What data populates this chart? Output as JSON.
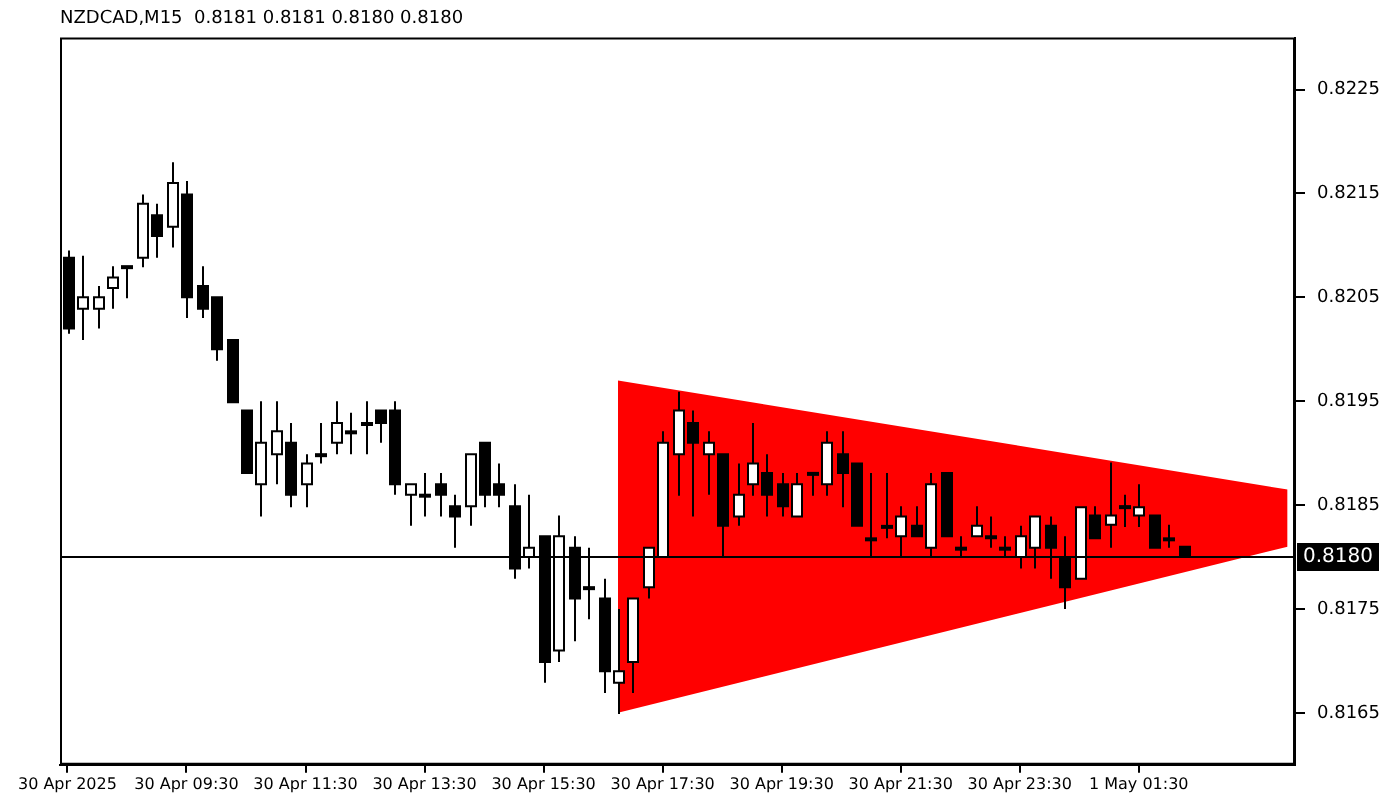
{
  "chart_data": {
    "type": "candlestick",
    "title": "NZDCAD,M15  0.8181 0.8181 0.8180 0.8180",
    "categories": [
      "30 Apr 2025",
      null,
      null,
      null,
      null,
      null,
      null,
      null,
      "30 Apr 09:30",
      null,
      null,
      null,
      null,
      null,
      null,
      null,
      "30 Apr 11:30",
      null,
      null,
      null,
      null,
      null,
      null,
      null,
      "30 Apr 13:30",
      null,
      null,
      null,
      null,
      null,
      null,
      null,
      "30 Apr 15:30",
      null,
      null,
      null,
      null,
      null,
      null,
      null,
      "30 Apr 17:30",
      null,
      null,
      null,
      null,
      null,
      null,
      null,
      "30 Apr 19:30",
      null,
      null,
      null,
      null,
      null,
      null,
      null,
      "30 Apr 21:30",
      null,
      null,
      null,
      null,
      null,
      null,
      null,
      "30 Apr 23:30",
      null,
      null,
      null,
      null,
      null,
      null,
      null,
      "1 May 01:30",
      null,
      null,
      null,
      null,
      null,
      null,
      null,
      null,
      null,
      null
    ],
    "ohlc": [
      [
        0.82088,
        0.82095,
        0.82015,
        0.8202
      ],
      [
        0.82039,
        0.8209,
        0.82009,
        0.8205
      ],
      [
        0.82039,
        0.82061,
        0.8202,
        0.8205
      ],
      [
        0.82059,
        0.8208,
        0.82039,
        0.82069
      ],
      [
        0.82079,
        0.8208,
        0.82049,
        0.8208
      ],
      [
        0.82088,
        0.82149,
        0.82079,
        0.8214
      ],
      [
        0.82129,
        0.8214,
        0.82088,
        0.82109
      ],
      [
        0.82118,
        0.8218,
        0.82098,
        0.8216
      ],
      [
        0.82149,
        0.82162,
        0.8203,
        0.8205
      ],
      [
        0.82061,
        0.8208,
        0.8203,
        0.82039
      ],
      [
        0.8205,
        0.8205,
        0.81989,
        0.82
      ],
      [
        0.82009,
        0.82009,
        0.81949,
        0.81949
      ],
      [
        0.81941,
        0.81941,
        0.81881,
        0.81881
      ],
      [
        0.8187,
        0.8195,
        0.81839,
        0.8191
      ],
      [
        0.81899,
        0.8195,
        0.8187,
        0.81921
      ],
      [
        0.8191,
        0.81929,
        0.81848,
        0.8186
      ],
      [
        0.8187,
        0.81899,
        0.81848,
        0.8189
      ],
      [
        0.81899,
        0.81929,
        0.8189,
        0.81899
      ],
      [
        0.8191,
        0.8195,
        0.81899,
        0.81929
      ],
      [
        0.81921,
        0.81939,
        0.81899,
        0.81921
      ],
      [
        0.81929,
        0.8195,
        0.81899,
        0.81929
      ],
      [
        0.81941,
        0.81941,
        0.8191,
        0.81929
      ],
      [
        0.81941,
        0.8195,
        0.8186,
        0.8187
      ],
      [
        0.8186,
        0.8187,
        0.8183,
        0.8187
      ],
      [
        0.8186,
        0.81881,
        0.81839,
        0.8186
      ],
      [
        0.8187,
        0.81881,
        0.81839,
        0.8186
      ],
      [
        0.81849,
        0.8186,
        0.81809,
        0.81839
      ],
      [
        0.81849,
        0.81899,
        0.8183,
        0.81899
      ],
      [
        0.8191,
        0.8191,
        0.81848,
        0.8186
      ],
      [
        0.8187,
        0.8189,
        0.81848,
        0.8186
      ],
      [
        0.81849,
        0.8187,
        0.81779,
        0.81789
      ],
      [
        0.818,
        0.8186,
        0.81789,
        0.81809
      ],
      [
        0.8182,
        0.8182,
        0.81679,
        0.81699
      ],
      [
        0.8171,
        0.8184,
        0.81699,
        0.8182
      ],
      [
        0.81809,
        0.8182,
        0.81719,
        0.8176
      ],
      [
        0.81771,
        0.81809,
        0.8174,
        0.81771
      ],
      [
        0.8176,
        0.81779,
        0.81669,
        0.8169
      ],
      [
        0.81679,
        0.8175,
        0.81649,
        0.8169
      ],
      [
        0.81699,
        0.8176,
        0.81669,
        0.8176
      ],
      [
        0.81771,
        0.81809,
        0.8176,
        0.81809
      ],
      [
        0.818,
        0.81921,
        0.818,
        0.8191
      ],
      [
        0.81899,
        0.81959,
        0.81859,
        0.81941
      ],
      [
        0.81929,
        0.81941,
        0.81839,
        0.8191
      ],
      [
        0.81899,
        0.81921,
        0.8186,
        0.8191
      ],
      [
        0.81899,
        0.81899,
        0.818,
        0.8183
      ],
      [
        0.81839,
        0.8189,
        0.8183,
        0.8186
      ],
      [
        0.8187,
        0.81929,
        0.81859,
        0.8189
      ],
      [
        0.81881,
        0.81899,
        0.81839,
        0.8186
      ],
      [
        0.8187,
        0.81881,
        0.81839,
        0.81849
      ],
      [
        0.81839,
        0.81881,
        0.81839,
        0.8187
      ],
      [
        0.81881,
        0.81881,
        0.81859,
        0.81881
      ],
      [
        0.8187,
        0.81921,
        0.81859,
        0.8191
      ],
      [
        0.81899,
        0.81921,
        0.81848,
        0.81881
      ],
      [
        0.8189,
        0.8189,
        0.8183,
        0.8183
      ],
      [
        0.81818,
        0.81881,
        0.818,
        0.81818
      ],
      [
        0.8183,
        0.81881,
        0.81818,
        0.8183
      ],
      [
        0.8182,
        0.81849,
        0.818,
        0.81839
      ],
      [
        0.8183,
        0.81849,
        0.8182,
        0.8182
      ],
      [
        0.81809,
        0.81881,
        0.818,
        0.8187
      ],
      [
        0.81881,
        0.81881,
        0.8182,
        0.8182
      ],
      [
        0.81809,
        0.8182,
        0.818,
        0.81809
      ],
      [
        0.8182,
        0.81849,
        0.8182,
        0.8183
      ],
      [
        0.8182,
        0.81839,
        0.81809,
        0.8182
      ],
      [
        0.81809,
        0.8182,
        0.818,
        0.81809
      ],
      [
        0.818,
        0.8183,
        0.81789,
        0.8182
      ],
      [
        0.81809,
        0.81839,
        0.81789,
        0.81839
      ],
      [
        0.8183,
        0.81839,
        0.81779,
        0.81809
      ],
      [
        0.818,
        0.8182,
        0.8175,
        0.81771
      ],
      [
        0.81779,
        0.81848,
        0.81779,
        0.81848
      ],
      [
        0.8184,
        0.81849,
        0.81818,
        0.81818
      ],
      [
        0.81831,
        0.81891,
        0.81809,
        0.8184
      ],
      [
        0.81849,
        0.8186,
        0.81829,
        0.81849
      ],
      [
        0.8184,
        0.8187,
        0.81829,
        0.81848
      ],
      [
        0.8184,
        0.8184,
        0.81809,
        0.81809
      ],
      [
        0.81818,
        0.81831,
        0.81809,
        0.81818
      ],
      [
        0.8181,
        0.8181,
        0.818,
        0.818
      ],
      null,
      null,
      null,
      null,
      null,
      null,
      null
    ],
    "series": [
      {
        "type": "line",
        "color": "#ff0000",
        "values": [
          null,
          null,
          null,
          null,
          null,
          null,
          null,
          null,
          null,
          null,
          null,
          null,
          null,
          null,
          null,
          null,
          null,
          null,
          null,
          null,
          null,
          null,
          null,
          null,
          null,
          null,
          null,
          null,
          null,
          null,
          null,
          null,
          null,
          null,
          null,
          null,
          null,
          null,
          null,
          null,
          null,
          null,
          null,
          null,
          null,
          null,
          null,
          null,
          null,
          null,
          null,
          null,
          null,
          null,
          null,
          null,
          null,
          null,
          null,
          null,
          null,
          null,
          null,
          null,
          null,
          null,
          null,
          null,
          null,
          null,
          null,
          null,
          null,
          null,
          null,
          null,
          null,
          null,
          null,
          null,
          null,
          null,
          null
        ],
        "upper": [
          null,
          null,
          null,
          null,
          null,
          null,
          null,
          null,
          null,
          null,
          null,
          null,
          null,
          null,
          null,
          null,
          null,
          null,
          null,
          null,
          null,
          null,
          null,
          null,
          null,
          null,
          null,
          null,
          null,
          null,
          null,
          null,
          null,
          null,
          null,
          null,
          null,
          0.8197,
          null,
          null,
          null,
          null,
          null,
          null,
          null,
          null,
          null,
          null,
          null,
          null,
          null,
          null,
          null,
          null,
          null,
          null,
          null,
          null,
          null,
          null,
          null,
          null,
          null,
          null,
          null,
          null,
          null,
          null,
          null,
          null,
          null,
          null,
          null,
          null,
          null,
          null,
          null,
          null,
          null,
          null,
          null,
          null,
          0.81865
        ],
        "lower": [
          null,
          null,
          null,
          null,
          null,
          null,
          null,
          null,
          null,
          null,
          null,
          null,
          null,
          null,
          null,
          null,
          null,
          null,
          null,
          null,
          null,
          null,
          null,
          null,
          null,
          null,
          null,
          null,
          null,
          null,
          null,
          null,
          null,
          null,
          null,
          null,
          null,
          0.8165,
          null,
          null,
          null,
          null,
          null,
          null,
          null,
          null,
          null,
          null,
          null,
          null,
          null,
          null,
          null,
          null,
          null,
          null,
          null,
          null,
          null,
          null,
          null,
          null,
          null,
          null,
          null,
          null,
          null,
          null,
          null,
          null,
          null,
          null,
          null,
          null,
          null,
          null,
          null,
          null,
          null,
          null,
          null,
          null,
          0.8181
        ]
      }
    ],
    "ylim": [
      0.816,
      0.823
    ],
    "yticks": [
      0.8165,
      0.8175,
      0.8185,
      0.8195,
      0.8205,
      0.8215,
      0.8225
    ],
    "ref_lines": [
      {
        "axis": "y",
        "value": 0.818,
        "label": "0.8180",
        "color": "#000000"
      }
    ]
  }
}
